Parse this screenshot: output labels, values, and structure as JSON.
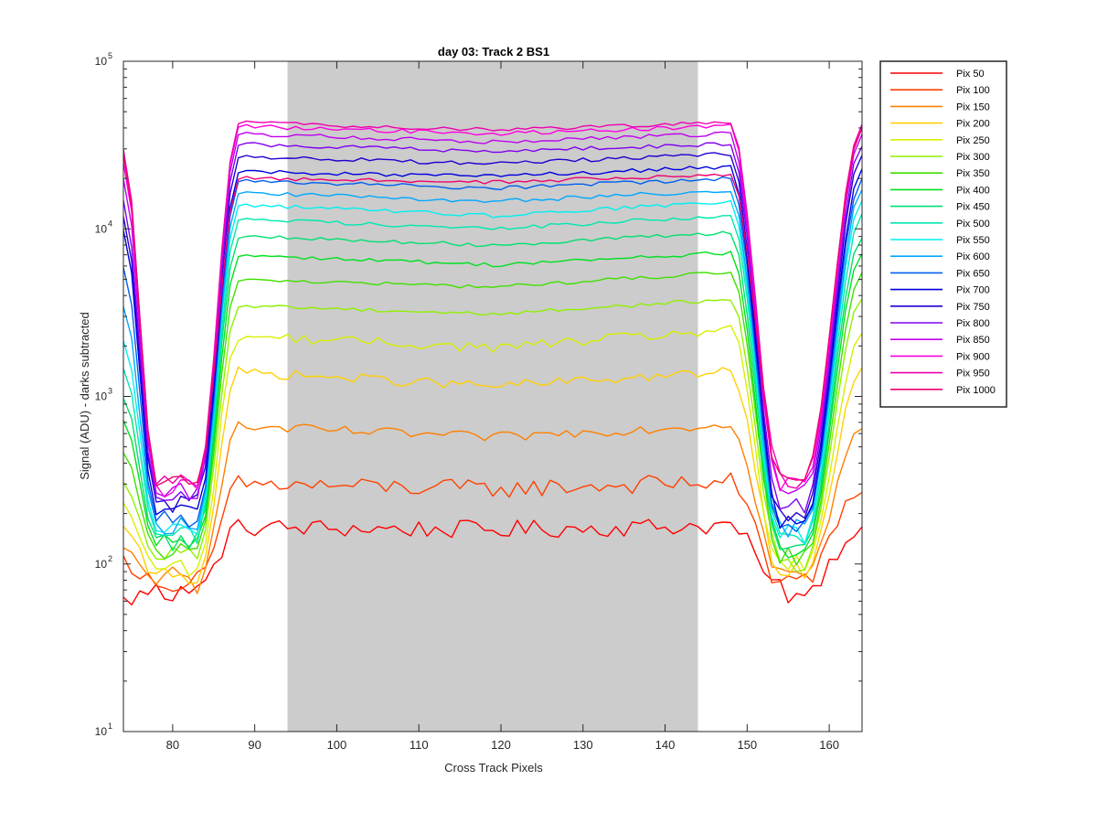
{
  "figure": {
    "title": "day 03: Track 2  BS1",
    "xlabel": "Cross Track Pixels",
    "ylabel": "Signal (ADU) - darks subtracted"
  },
  "chart_data": {
    "type": "line",
    "title": "day 03: Track 2  BS1",
    "xlabel": "Cross Track Pixels",
    "ylabel": "Signal (ADU) - darks subtracted",
    "xlim": [
      74,
      164
    ],
    "ylim": [
      10,
      100000
    ],
    "yscale": "log",
    "xticks": [
      80,
      90,
      100,
      110,
      120,
      130,
      140,
      150,
      160
    ],
    "yticks": [
      {
        "value": 10,
        "base": "10",
        "exp": "1"
      },
      {
        "value": 100,
        "base": "10",
        "exp": "2"
      },
      {
        "value": 1000,
        "base": "10",
        "exp": "3"
      },
      {
        "value": 10000,
        "base": "10",
        "exp": "4"
      },
      {
        "value": 100000,
        "base": "10",
        "exp": "5"
      }
    ],
    "shaded_region": {
      "x": [
        94,
        144
      ],
      "color": "#cccccc"
    },
    "grid": false,
    "legend_position": "outside-right",
    "x": [
      74,
      86,
      88,
      94,
      100,
      110,
      120,
      130,
      140,
      144,
      148,
      150,
      164
    ],
    "series": [
      {
        "name": "Pix 50",
        "color": "#ff0000",
        "edge_left": 60,
        "trough_left": 70,
        "plateau_left": 165,
        "plateau_mid": 160,
        "plateau_right": 170,
        "trough_right": 70,
        "edge_right": 170
      },
      {
        "name": "Pix 100",
        "color": "#ff4000",
        "edge_left": 105,
        "trough_left": 75,
        "plateau_left": 300,
        "plateau_mid": 280,
        "plateau_right": 310,
        "trough_right": 80,
        "edge_right": 285
      },
      {
        "name": "Pix 150",
        "color": "#ff8000",
        "edge_left": 120,
        "trough_left": 80,
        "plateau_left": 660,
        "plateau_mid": 570,
        "plateau_right": 680,
        "trough_right": 85,
        "edge_right": 680
      },
      {
        "name": "Pix 200",
        "color": "#ffd000",
        "edge_left": 160,
        "trough_left": 85,
        "plateau_left": 1400,
        "plateau_mid": 1150,
        "plateau_right": 1400,
        "trough_right": 90,
        "edge_right": 1400
      },
      {
        "name": "Pix 250",
        "color": "#d8f000",
        "edge_left": 220,
        "trough_left": 95,
        "plateau_left": 2300,
        "plateau_mid": 1950,
        "plateau_right": 2500,
        "trough_right": 95,
        "edge_right": 2300
      },
      {
        "name": "Pix 300",
        "color": "#90f000",
        "edge_left": 300,
        "trough_left": 110,
        "plateau_left": 3500,
        "plateau_mid": 3100,
        "plateau_right": 3800,
        "trough_right": 105,
        "edge_right": 3800
      },
      {
        "name": "Pix 350",
        "color": "#40e000",
        "edge_left": 450,
        "trough_left": 120,
        "plateau_left": 5000,
        "plateau_mid": 4500,
        "plateau_right": 5500,
        "trough_right": 110,
        "edge_right": 5500
      },
      {
        "name": "Pix 400",
        "color": "#00e020",
        "edge_left": 700,
        "trough_left": 130,
        "plateau_left": 7000,
        "plateau_mid": 6100,
        "plateau_right": 7200,
        "trough_right": 120,
        "edge_right": 7200
      },
      {
        "name": "Pix 450",
        "color": "#00e070",
        "edge_left": 1000,
        "trough_left": 140,
        "plateau_left": 9000,
        "plateau_mid": 8000,
        "plateau_right": 9500,
        "trough_right": 130,
        "edge_right": 9000
      },
      {
        "name": "Pix 500",
        "color": "#00e8b0",
        "edge_left": 1500,
        "trough_left": 150,
        "plateau_left": 11500,
        "plateau_mid": 10000,
        "plateau_right": 12000,
        "trough_right": 140,
        "edge_right": 12000
      },
      {
        "name": "Pix 550",
        "color": "#00f0f0",
        "edge_left": 2200,
        "trough_left": 160,
        "plateau_left": 14000,
        "plateau_mid": 12000,
        "plateau_right": 14500,
        "trough_right": 150,
        "edge_right": 14500
      },
      {
        "name": "Pix 600",
        "color": "#00a8ff",
        "edge_left": 3500,
        "trough_left": 170,
        "plateau_left": 16500,
        "plateau_mid": 14500,
        "plateau_right": 17000,
        "trough_right": 160,
        "edge_right": 17000
      },
      {
        "name": "Pix 650",
        "color": "#0060f0",
        "edge_left": 6000,
        "trough_left": 180,
        "plateau_left": 19500,
        "plateau_mid": 17500,
        "plateau_right": 20000,
        "trough_right": 170,
        "edge_right": 20000
      },
      {
        "name": "Pix 700",
        "color": "#0000e0",
        "edge_left": 10000,
        "trough_left": 200,
        "plateau_left": 22000,
        "plateau_mid": 20500,
        "plateau_right": 23500,
        "trough_right": 180,
        "edge_right": 23000
      },
      {
        "name": "Pix 750",
        "color": "#2000d0",
        "edge_left": 12000,
        "trough_left": 230,
        "plateau_left": 27000,
        "plateau_mid": 24500,
        "plateau_right": 28000,
        "trough_right": 200,
        "edge_right": 28000
      },
      {
        "name": "Pix 800",
        "color": "#8000f0",
        "edge_left": 15000,
        "trough_left": 250,
        "plateau_left": 32000,
        "plateau_mid": 29000,
        "plateau_right": 32000,
        "trough_right": 230,
        "edge_right": 32000
      },
      {
        "name": "Pix 850",
        "color": "#c000f0",
        "edge_left": 20000,
        "trough_left": 270,
        "plateau_left": 37000,
        "plateau_mid": 33000,
        "plateau_right": 37000,
        "trough_right": 260,
        "edge_right": 36000
      },
      {
        "name": "Pix 900",
        "color": "#ff00e0",
        "edge_left": 25000,
        "trough_left": 290,
        "plateau_left": 41000,
        "plateau_mid": 37000,
        "plateau_right": 41000,
        "trough_right": 290,
        "edge_right": 40000
      },
      {
        "name": "Pix 950",
        "color": "#f000b0",
        "edge_left": 30000,
        "trough_left": 300,
        "plateau_left": 43000,
        "plateau_mid": 39000,
        "plateau_right": 43000,
        "trough_right": 320,
        "edge_right": 42000
      },
      {
        "name": "Pix 1000",
        "color": "#f00070",
        "edge_left": 28000,
        "trough_left": 300,
        "plateau_left": 20000,
        "plateau_mid": 19000,
        "plateau_right": 21000,
        "trough_right": 340,
        "edge_right": 40000
      }
    ]
  }
}
